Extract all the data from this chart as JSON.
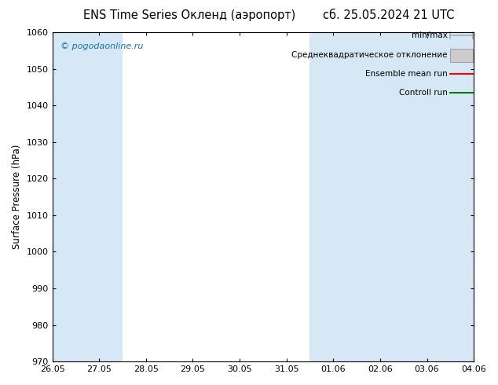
{
  "title_left": "ENS Time Series Окленд (аэропорт)",
  "title_right": "сб. 25.05.2024 21 UTC",
  "ylabel": "Surface Pressure (hPa)",
  "watermark": "© pogodaonline.ru",
  "ylim": [
    970,
    1060
  ],
  "yticks": [
    970,
    980,
    990,
    1000,
    1010,
    1020,
    1030,
    1040,
    1050,
    1060
  ],
  "xtick_labels": [
    "26.05",
    "27.05",
    "28.05",
    "29.05",
    "30.05",
    "31.05",
    "01.06",
    "02.06",
    "03.06",
    "04.06"
  ],
  "shaded_columns": [
    0,
    1,
    6,
    7,
    8,
    9
  ],
  "shade_color": "#d6e8f5",
  "legend_items": [
    {
      "label": "min/max",
      "color": "#aaaaaa",
      "type": "errorbar"
    },
    {
      "label": "Среднеквадратическое отклонение",
      "color": "#cccccc",
      "type": "fill"
    },
    {
      "label": "Ensemble mean run",
      "color": "#ff0000",
      "type": "line"
    },
    {
      "label": "Controll run",
      "color": "#008000",
      "type": "line"
    }
  ],
  "bg_color": "#ffffff",
  "plot_bg_color": "#ffffff",
  "border_color": "#000000",
  "title_fontsize": 10.5,
  "axis_fontsize": 8.5,
  "tick_fontsize": 8,
  "legend_fontsize": 7.5
}
